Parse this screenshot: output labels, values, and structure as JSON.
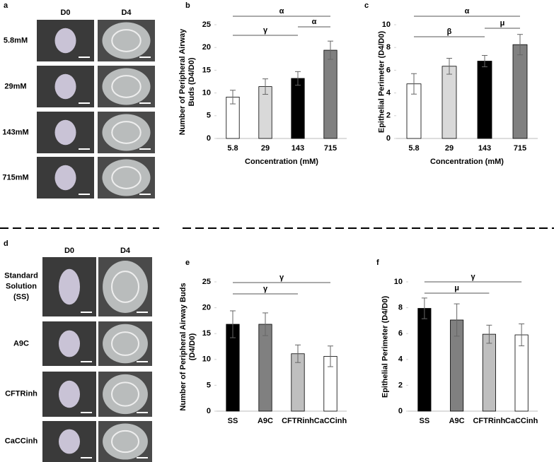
{
  "photo_panels": [
    {
      "panel": "a",
      "columns": [
        "D0",
        "D4"
      ],
      "rows": [
        "5.8mM",
        "29mM",
        "143mM",
        "715mM"
      ]
    },
    {
      "panel": "d",
      "columns": [
        "D0",
        "D4"
      ],
      "rows": [
        "Standard Solution (SS)",
        "A9C",
        "CFTRinh",
        "CaCCinh"
      ]
    }
  ],
  "chart_data": [
    {
      "type": "bar",
      "panel": "b",
      "categories": [
        "5.8",
        "29",
        "143",
        "715"
      ],
      "values": [
        9.1,
        11.4,
        13.2,
        19.4
      ],
      "errors": [
        1.5,
        1.7,
        1.5,
        2.0
      ],
      "colors": [
        "#ffffff",
        "#d9d9d9",
        "#000000",
        "#808080"
      ],
      "ylim": [
        0,
        25
      ],
      "yticks": [
        0,
        5,
        10,
        15,
        20,
        25
      ],
      "y_label": "Number of Peripheral Airway Buds (D4/D0)",
      "x_label": "Concentration (mM)",
      "annotations": [
        {
          "text": "α",
          "from": 0,
          "to": 3
        },
        {
          "text": "γ",
          "from": 0,
          "to": 2
        },
        {
          "text": "α",
          "from": 2,
          "to": 3
        }
      ]
    },
    {
      "type": "bar",
      "panel": "c",
      "categories": [
        "5.8",
        "29",
        "143",
        "715"
      ],
      "values": [
        4.8,
        6.35,
        6.8,
        8.25
      ],
      "errors": [
        0.9,
        0.7,
        0.5,
        0.9
      ],
      "colors": [
        "#ffffff",
        "#d9d9d9",
        "#000000",
        "#808080"
      ],
      "ylim": [
        0,
        10
      ],
      "yticks": [
        0,
        2,
        4,
        6,
        8,
        10
      ],
      "y_label": "Epithelial Perimeter (D4/D0)",
      "x_label": "Concentration (mM)",
      "annotations": [
        {
          "text": "α",
          "from": 0,
          "to": 3
        },
        {
          "text": "β",
          "from": 0,
          "to": 2
        },
        {
          "text": "μ",
          "from": 2,
          "to": 3
        }
      ]
    },
    {
      "type": "bar",
      "panel": "e",
      "categories": [
        "SS",
        "A9C",
        "CFTRinh",
        "CaCCinh"
      ],
      "values": [
        16.8,
        16.8,
        11.1,
        10.6
      ],
      "errors": [
        2.6,
        2.2,
        1.7,
        2.0
      ],
      "colors": [
        "#000000",
        "#808080",
        "#bfbfbf",
        "#ffffff"
      ],
      "ylim": [
        0,
        25
      ],
      "yticks": [
        0,
        5,
        10,
        15,
        20,
        25
      ],
      "y_label": "Number of Peripheral Airway Buds (D4/D0)",
      "annotations": [
        {
          "text": "γ",
          "from": 0,
          "to": 3
        },
        {
          "text": "γ",
          "from": 0,
          "to": 2
        }
      ]
    },
    {
      "type": "bar",
      "panel": "f",
      "categories": [
        "SS",
        "A9C",
        "CFTRinh",
        "CaCCinh"
      ],
      "values": [
        7.95,
        7.05,
        5.95,
        5.9
      ],
      "errors": [
        0.8,
        1.25,
        0.7,
        0.85
      ],
      "colors": [
        "#000000",
        "#808080",
        "#bfbfbf",
        "#ffffff"
      ],
      "ylim": [
        0,
        10
      ],
      "yticks": [
        0,
        2,
        4,
        6,
        8,
        10
      ],
      "y_label": "Epithelial Perimeter (D4/D0)",
      "annotations": [
        {
          "text": "γ",
          "from": 0,
          "to": 3
        },
        {
          "text": "μ",
          "from": 0,
          "to": 2
        }
      ]
    }
  ]
}
